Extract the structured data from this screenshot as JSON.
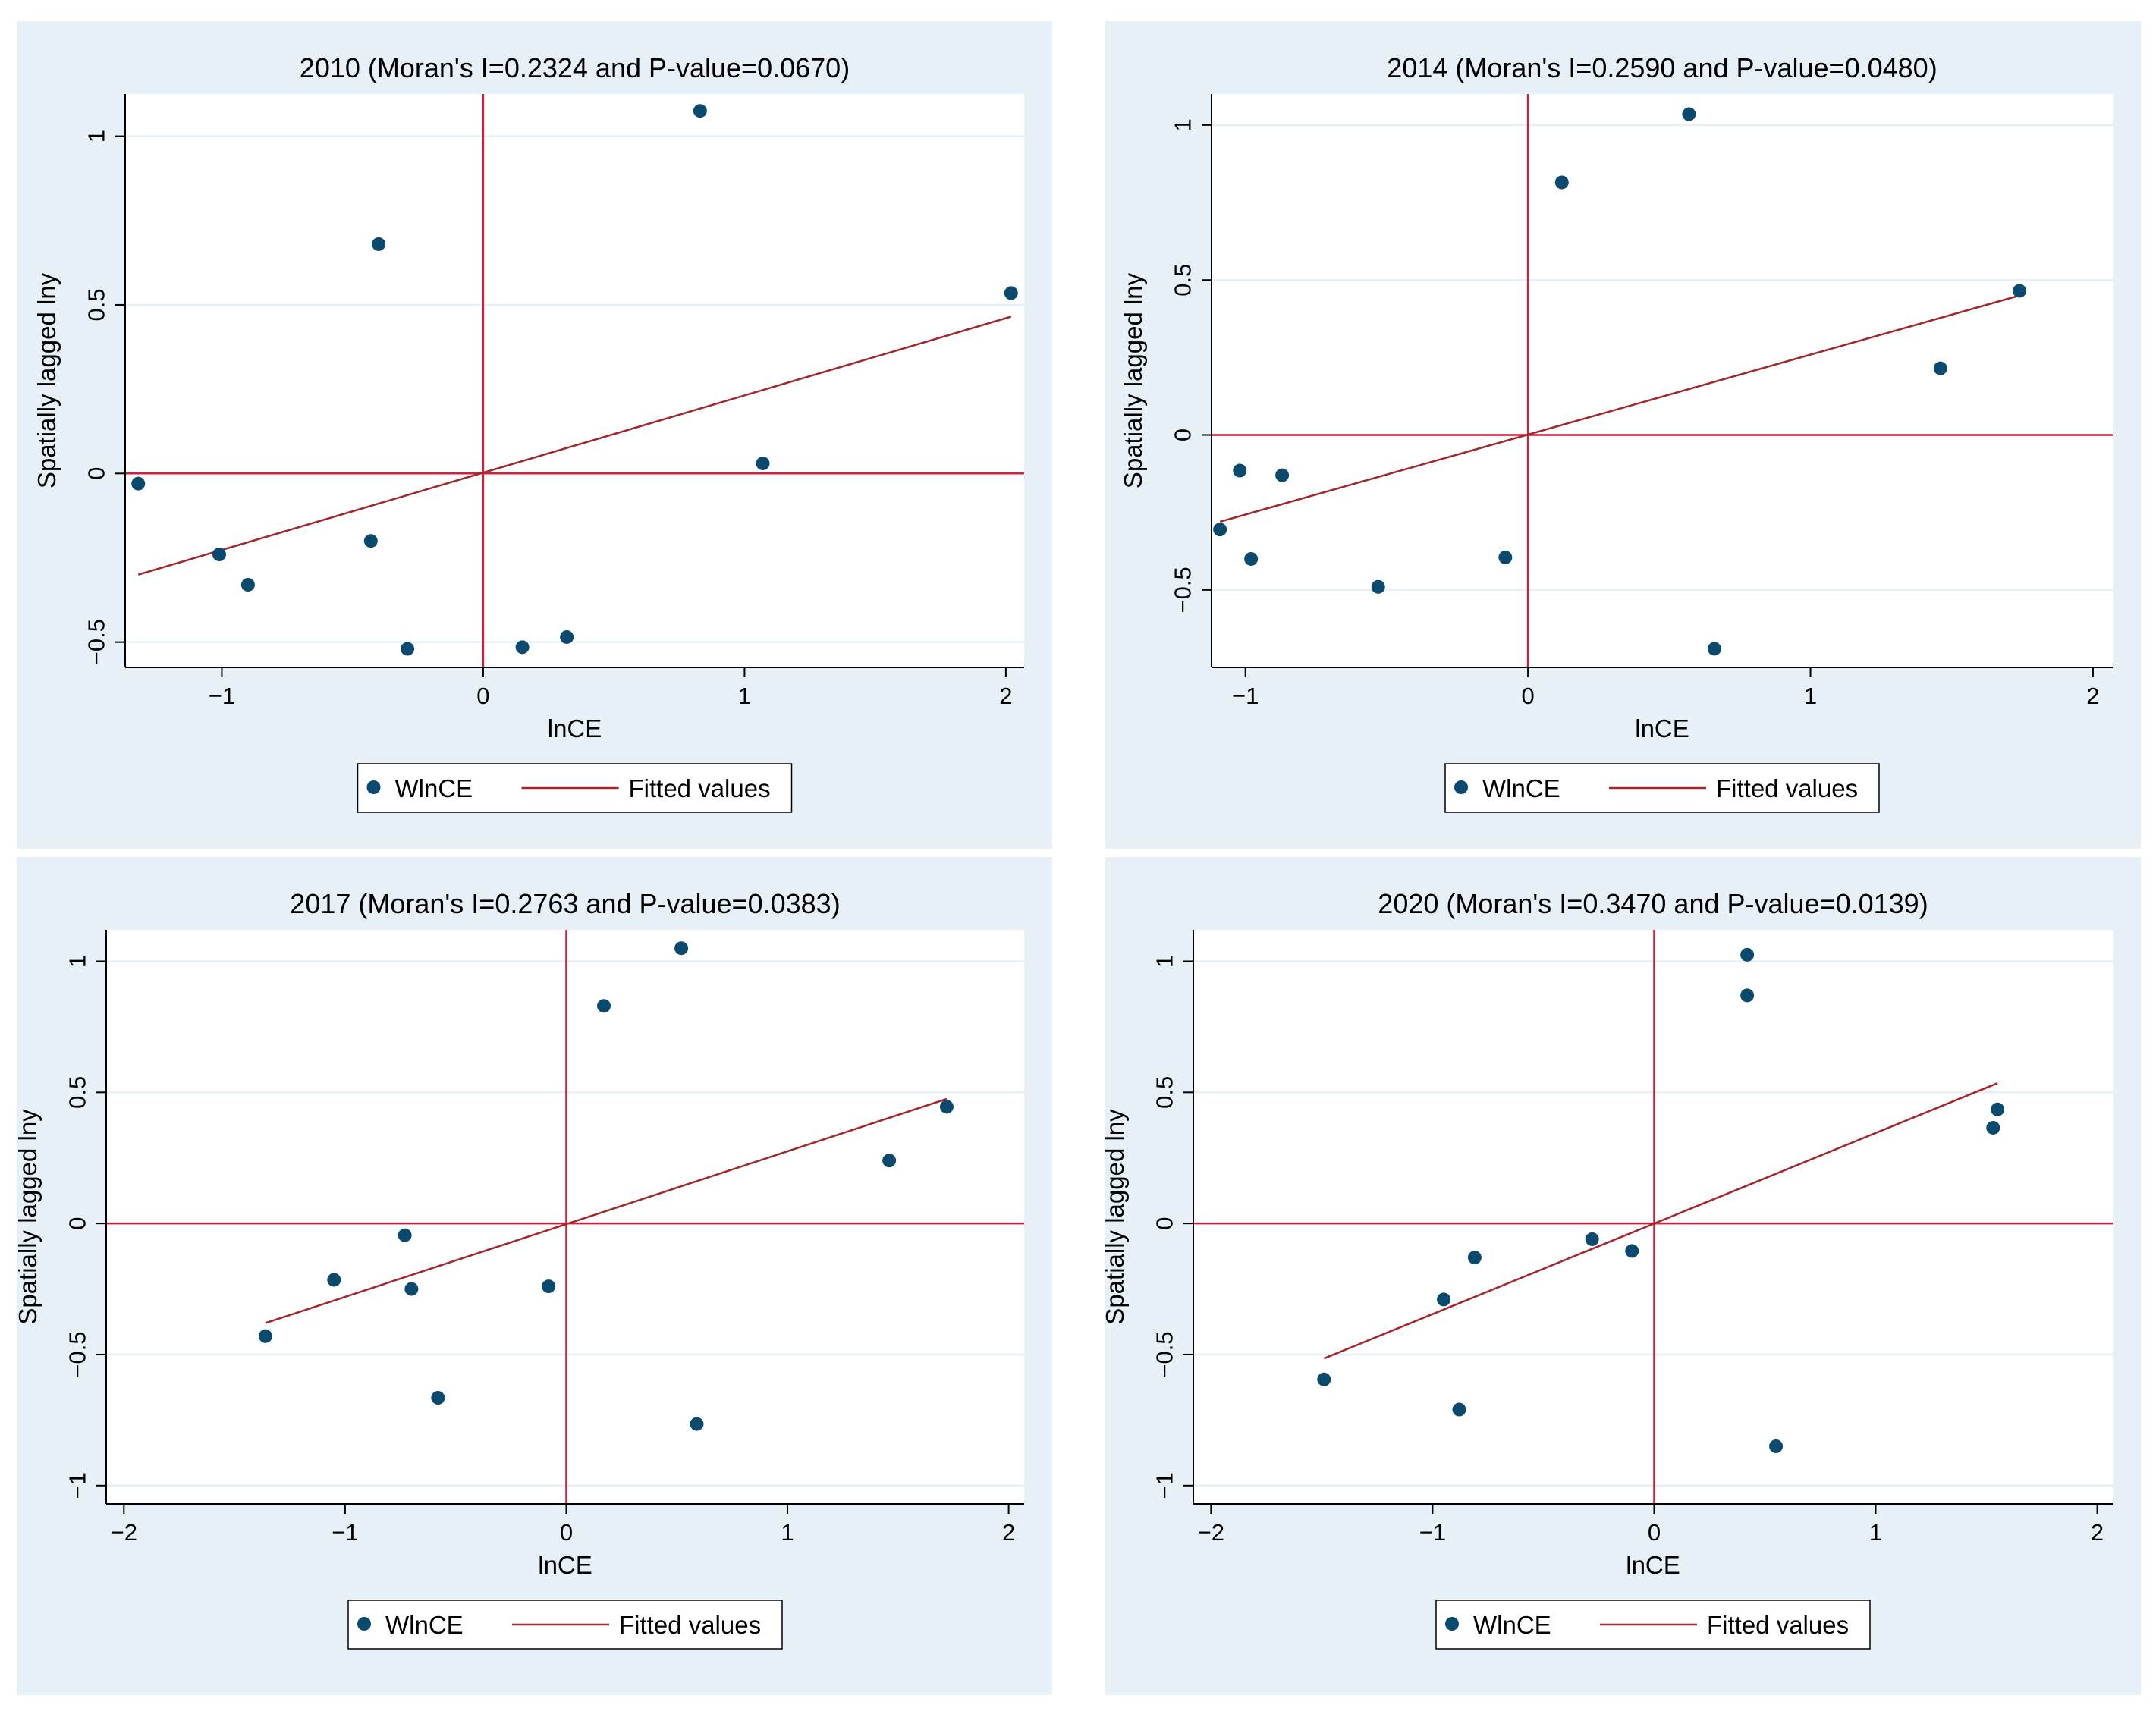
{
  "colors": {
    "panel_bg": "#e6f0f6",
    "plot_bg": "#ffffff",
    "grid": "#e6f0f6",
    "marker": "#0b4a6f",
    "quadrant_line": "#d51c3a",
    "fit_line": "#a2262a",
    "axis": "#000000"
  },
  "chart_data": [
    {
      "type": "scatter",
      "title": "2010 (Moran's I=0.2324 and P-value=0.0670)",
      "xlabel": "lnCE",
      "ylabel": "Spatially lagged lny",
      "xlim": [
        -1.37,
        2.07
      ],
      "ylim": [
        -0.575,
        1.125
      ],
      "xticks": [
        -1,
        0,
        1,
        2
      ],
      "yticks": [
        -0.5,
        0,
        0.5,
        1
      ],
      "xtick_labels": [
        "−1",
        "0",
        "1",
        "2"
      ],
      "ytick_labels": [
        "−0.5",
        "0",
        "0.5",
        "1"
      ],
      "legend": [
        "WlnCE",
        "Fitted values"
      ],
      "legend_position": "bottom",
      "series": [
        {
          "name": "WlnCE",
          "points": [
            [
              -1.32,
              -0.03
            ],
            [
              -1.01,
              -0.24
            ],
            [
              -0.9,
              -0.33
            ],
            [
              -0.43,
              -0.2
            ],
            [
              -0.4,
              0.68
            ],
            [
              -0.29,
              -0.52
            ],
            [
              0.15,
              -0.515
            ],
            [
              0.32,
              -0.485
            ],
            [
              0.83,
              1.075
            ],
            [
              1.07,
              0.03
            ],
            [
              2.02,
              0.535
            ]
          ]
        },
        {
          "name": "Fitted values",
          "points": [
            [
              -1.32,
              -0.3
            ],
            [
              2.02,
              0.465
            ]
          ]
        }
      ]
    },
    {
      "type": "scatter",
      "title": "2014 (Moran's I=0.2590 and P-value=0.0480)",
      "xlabel": "lnCE",
      "ylabel": "Spatially lagged lny",
      "xlim": [
        -1.12,
        2.07
      ],
      "ylim": [
        -0.75,
        1.1
      ],
      "xticks": [
        -1,
        0,
        1,
        2
      ],
      "yticks": [
        -0.5,
        0,
        0.5,
        1
      ],
      "xtick_labels": [
        "−1",
        "0",
        "1",
        "2"
      ],
      "ytick_labels": [
        "−0.5",
        "0",
        "0.5",
        "1"
      ],
      "legend": [
        "WlnCE",
        "Fitted values"
      ],
      "legend_position": "bottom",
      "series": [
        {
          "name": "WlnCE",
          "points": [
            [
              -1.09,
              -0.305
            ],
            [
              -1.02,
              -0.115
            ],
            [
              -0.98,
              -0.4
            ],
            [
              -0.87,
              -0.13
            ],
            [
              -0.53,
              -0.49
            ],
            [
              -0.08,
              -0.395
            ],
            [
              0.12,
              0.815
            ],
            [
              0.57,
              1.035
            ],
            [
              0.66,
              -0.69
            ],
            [
              1.46,
              0.215
            ],
            [
              1.74,
              0.465
            ]
          ]
        },
        {
          "name": "Fitted values",
          "points": [
            [
              -1.09,
              -0.28
            ],
            [
              1.74,
              0.45
            ]
          ]
        }
      ]
    },
    {
      "type": "scatter",
      "title": "2017 (Moran's I=0.2763 and P-value=0.0383)",
      "xlabel": "lnCE",
      "ylabel": "Spatially lagged lny",
      "xlim": [
        -2.08,
        2.07
      ],
      "ylim": [
        -1.07,
        1.12
      ],
      "xticks": [
        -2,
        -1,
        0,
        1,
        2
      ],
      "yticks": [
        -1,
        -0.5,
        0,
        0.5,
        1
      ],
      "xtick_labels": [
        "−2",
        "−1",
        "0",
        "1",
        "2"
      ],
      "ytick_labels": [
        "−1",
        "−0.5",
        "0",
        "0.5",
        "1"
      ],
      "legend": [
        "WlnCE",
        "Fitted values"
      ],
      "legend_position": "bottom",
      "series": [
        {
          "name": "WlnCE",
          "points": [
            [
              -1.36,
              -0.43
            ],
            [
              -1.05,
              -0.215
            ],
            [
              -0.73,
              -0.045
            ],
            [
              -0.7,
              -0.25
            ],
            [
              -0.58,
              -0.665
            ],
            [
              -0.08,
              -0.24
            ],
            [
              0.17,
              0.83
            ],
            [
              0.52,
              1.05
            ],
            [
              0.59,
              -0.765
            ],
            [
              1.46,
              0.24
            ],
            [
              1.72,
              0.445
            ]
          ]
        },
        {
          "name": "Fitted values",
          "points": [
            [
              -1.36,
              -0.38
            ],
            [
              1.72,
              0.475
            ]
          ]
        }
      ]
    },
    {
      "type": "scatter",
      "title": "2020 (Moran's I=0.3470 and P-value=0.0139)",
      "xlabel": "lnCE",
      "ylabel": "Spatially lagged lny",
      "xlim": [
        -2.08,
        2.07
      ],
      "ylim": [
        -1.07,
        1.12
      ],
      "xticks": [
        -2,
        -1,
        0,
        1,
        2
      ],
      "yticks": [
        -1,
        -0.5,
        0,
        0.5,
        1
      ],
      "xtick_labels": [
        "−2",
        "−1",
        "0",
        "1",
        "2"
      ],
      "ytick_labels": [
        "−1",
        "−0.5",
        "0",
        "0.5",
        "1"
      ],
      "legend": [
        "WlnCE",
        "Fitted values"
      ],
      "legend_position": "bottom",
      "series": [
        {
          "name": "WlnCE",
          "points": [
            [
              -1.49,
              -0.595
            ],
            [
              -0.95,
              -0.29
            ],
            [
              -0.88,
              -0.71
            ],
            [
              -0.81,
              -0.13
            ],
            [
              -0.28,
              -0.06
            ],
            [
              -0.1,
              -0.105
            ],
            [
              0.42,
              1.025
            ],
            [
              0.42,
              0.87
            ],
            [
              0.55,
              -0.85
            ],
            [
              1.53,
              0.365
            ],
            [
              1.55,
              0.435
            ]
          ]
        },
        {
          "name": "Fitted values",
          "points": [
            [
              -1.49,
              -0.515
            ],
            [
              1.55,
              0.535
            ]
          ]
        }
      ]
    }
  ]
}
